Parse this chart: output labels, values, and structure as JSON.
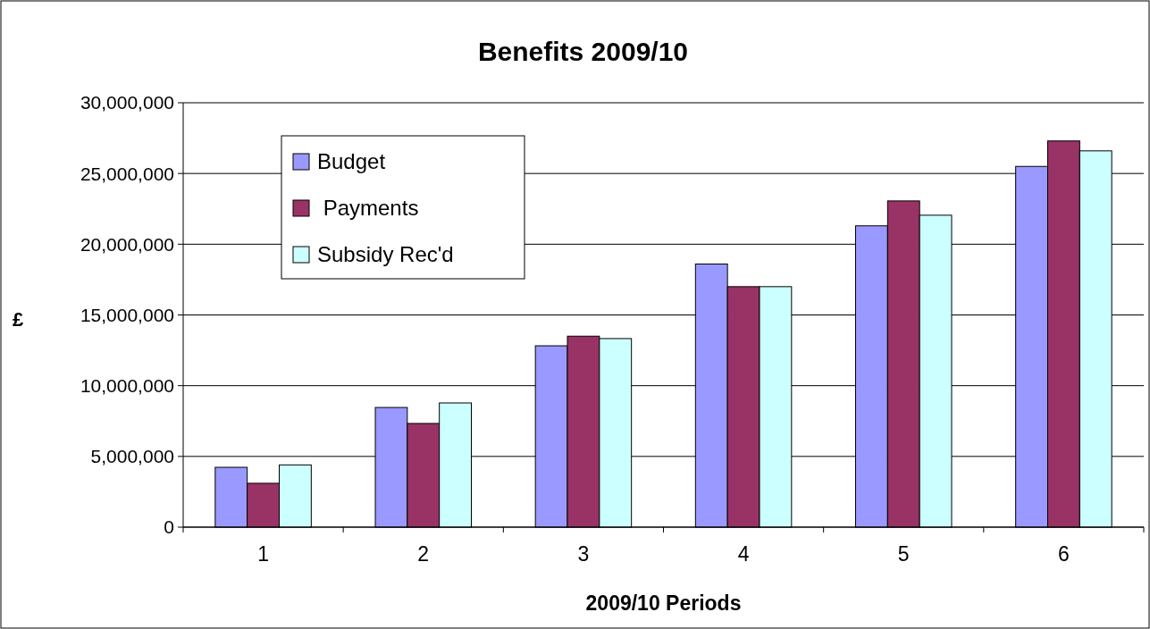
{
  "chart_data": {
    "type": "bar",
    "title": "Benefits 2009/10",
    "xlabel": "2009/10 Periods",
    "ylabel": "£",
    "categories": [
      "1",
      "2",
      "3",
      "4",
      "5",
      "6"
    ],
    "series": [
      {
        "name": "Budget",
        "color": "#9999ff",
        "values": [
          4230000,
          8460000,
          12820000,
          18600000,
          21300000,
          25500000
        ]
      },
      {
        "name": " Payments",
        "color": "#993366",
        "values": [
          3100000,
          7330000,
          13500000,
          17000000,
          23060000,
          27300000
        ]
      },
      {
        "name": "Subsidy Rec'd",
        "color": "#ccffff",
        "values": [
          4400000,
          8780000,
          13330000,
          17000000,
          22050000,
          26600000
        ]
      }
    ],
    "ylim": [
      0,
      30000000
    ],
    "yticks": [
      {
        "value": 0,
        "label": "0"
      },
      {
        "value": 5000000,
        "label": "5,000,000"
      },
      {
        "value": 10000000,
        "label": "10,000,000"
      },
      {
        "value": 15000000,
        "label": "15,000,000"
      },
      {
        "value": 20000000,
        "label": "20,000,000"
      },
      {
        "value": 25000000,
        "label": "25,000,000"
      },
      {
        "value": 30000000,
        "label": "30,000,000"
      }
    ],
    "grid": "y",
    "legend": "top left"
  }
}
